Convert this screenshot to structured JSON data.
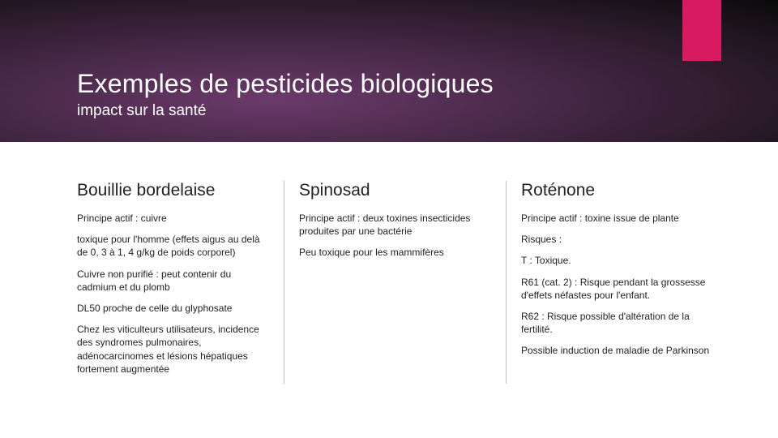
{
  "header": {
    "title": "Exemples de pesticides biologiques",
    "subtitle": "impact sur la santé",
    "accent_color": "#d81b60",
    "bg_gradient": [
      "#6b3a6b",
      "#4a2a4a",
      "#2a1a2a",
      "#0a0a0a"
    ]
  },
  "columns": [
    {
      "heading": "Bouillie bordelaise",
      "paragraphs": [
        "Principe actif : cuivre",
        "toxique pour l'homme (effets aigus au delà de 0, 3 à 1, 4 g/kg de poids corporel)",
        "Cuivre non purifié : peut contenir du cadmium et du plomb",
        "DL50 proche de celle du glyphosate",
        "Chez les viticulteurs utilisateurs, incidence des syndromes pulmonaires, adénocarcinomes et lésions hépatiques fortement augmentée"
      ]
    },
    {
      "heading": "Spinosad",
      "paragraphs": [
        "Principe actif : deux toxines insecticides produites par une bactérie",
        "Peu toxique pour les mammifères"
      ]
    },
    {
      "heading": "Roténone",
      "paragraphs": [
        "Principe actif : toxine issue de plante",
        "Risques :",
        "T : Toxique.",
        "R61 (cat. 2) : Risque pendant la grossesse d'effets néfastes pour l'enfant.",
        " R62 : Risque possible d'altération de la fertilité.",
        "Possible induction de maladie de Parkinson"
      ]
    }
  ],
  "styles": {
    "title_fontsize": 32,
    "subtitle_fontsize": 19,
    "heading_fontsize": 21,
    "body_fontsize": 12,
    "text_color": "#222222",
    "divider_color": "#bdbdbd",
    "background_color": "#ffffff"
  }
}
